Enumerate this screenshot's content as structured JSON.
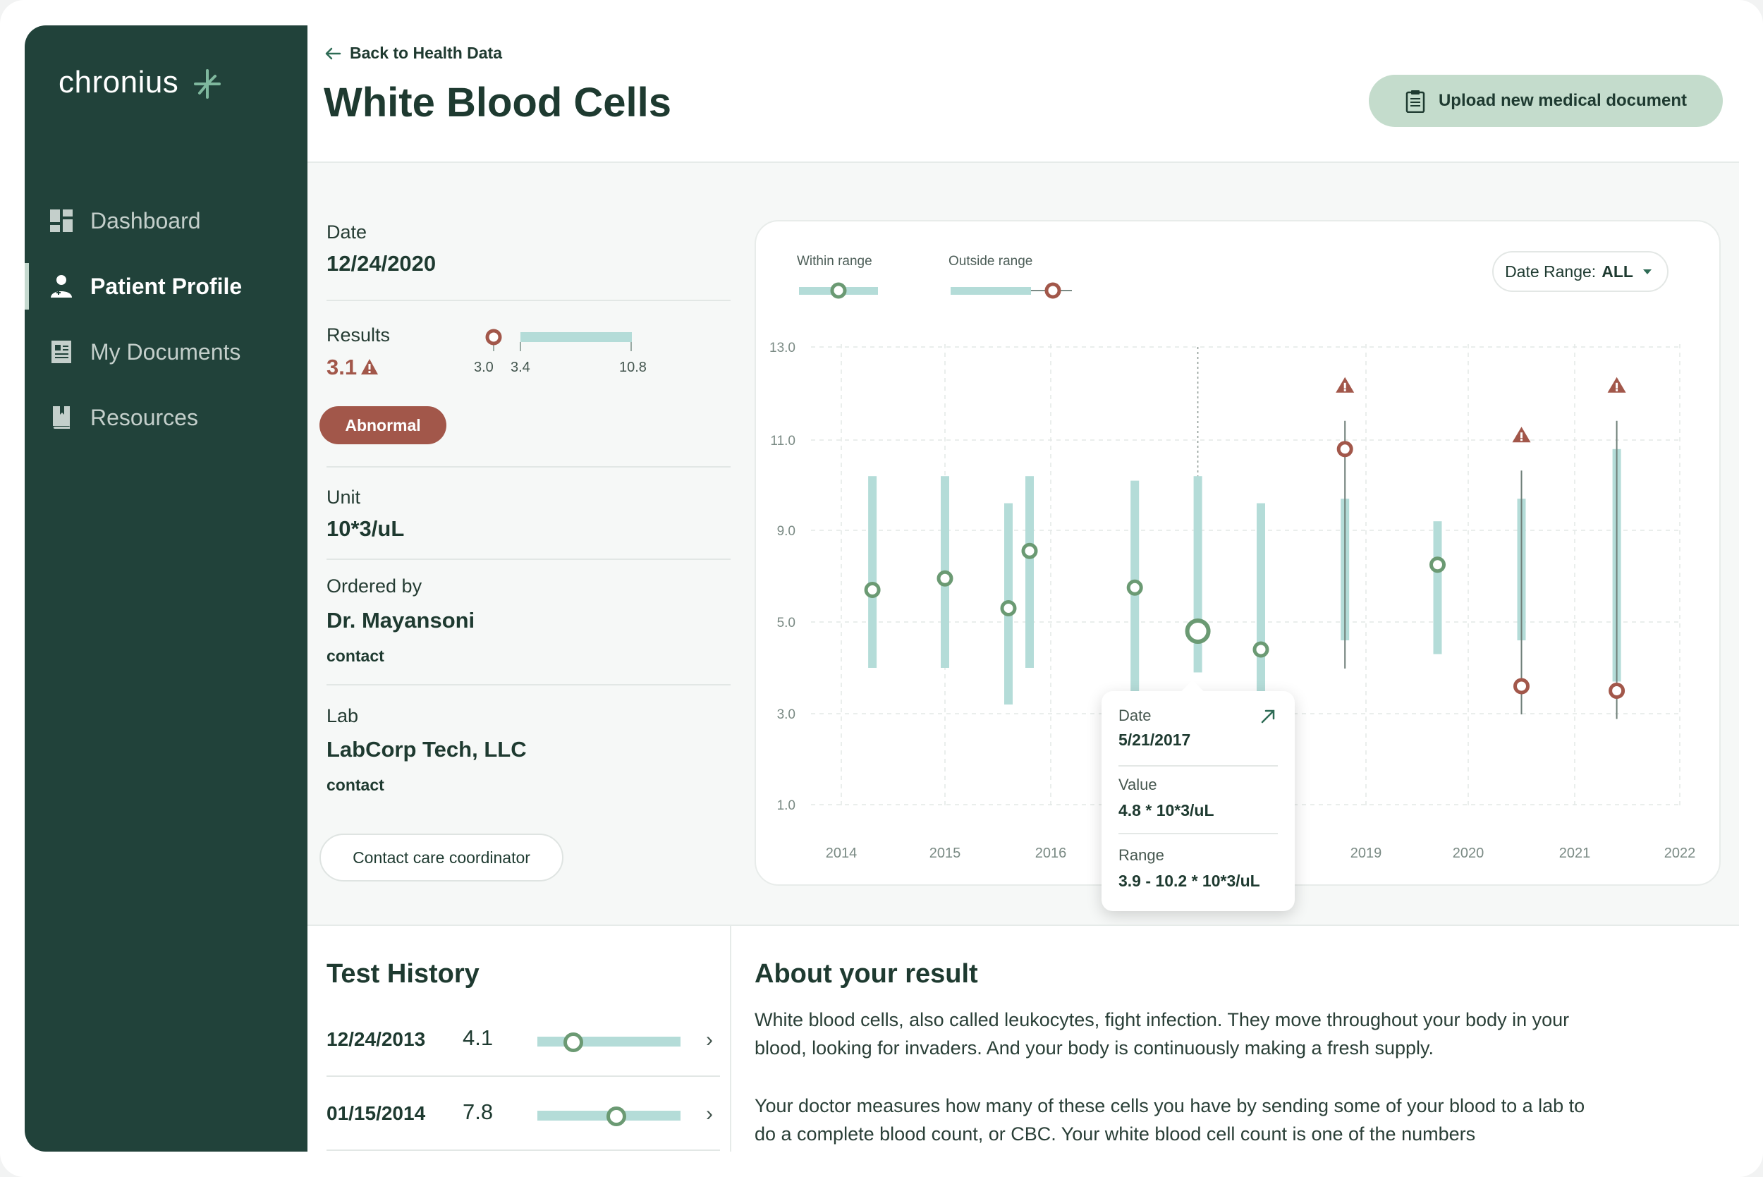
{
  "app": {
    "logo": "chronius",
    "logo_icon": "sparkle-icon"
  },
  "sidebar": {
    "items": [
      {
        "label": "Dashboard",
        "icon": "dashboard-grid-icon",
        "active": false
      },
      {
        "label": "Patient Profile",
        "icon": "patient-profile-icon",
        "active": true
      },
      {
        "label": "My Documents",
        "icon": "documents-icon",
        "active": false
      },
      {
        "label": "Resources",
        "icon": "bookmark-book-icon",
        "active": false
      }
    ]
  },
  "header": {
    "back_label": "Back to Health Data",
    "title": "White Blood Cells",
    "upload_label": "Upload new medical document"
  },
  "details": {
    "date_label": "Date",
    "date_value": "12/24/2020",
    "results_label": "Results",
    "results_value": "3.1",
    "results_scale": {
      "min": "3.0",
      "low": "3.4",
      "high": "10.8",
      "value": 3.1
    },
    "status_badge": "Abnormal",
    "unit_label": "Unit",
    "unit_value": "10*3/uL",
    "ordered_by_label": "Ordered by",
    "ordered_by_value": "Dr. Mayansoni",
    "ordered_by_contact": "contact",
    "lab_label": "Lab",
    "lab_value": "LabCorp Tech, LLC",
    "lab_contact": "contact",
    "coordinator_button": "Contact care coordinator"
  },
  "legend": {
    "within": "Within range",
    "outside": "Outside range"
  },
  "date_range": {
    "label": "Date Range:",
    "value": "ALL"
  },
  "chart_data": {
    "type": "range-dot",
    "y_ticks": [
      "13.0",
      "11.0",
      "9.0",
      "5.0",
      "3.0",
      "1.0"
    ],
    "x_ticks": [
      "2014",
      "2015",
      "2016",
      "2019",
      "2020",
      "2021",
      "2022"
    ],
    "grid": true,
    "colors": {
      "range": "#b4dcd8",
      "within": "#6b9a73",
      "outside": "#a2574a"
    },
    "points": [
      {
        "x": 2014.3,
        "range": [
          4.0,
          10.2
        ],
        "value": 6.4,
        "status": "within"
      },
      {
        "x": 2015.0,
        "range": [
          4.0,
          10.2
        ],
        "value": 6.9,
        "status": "within"
      },
      {
        "x": 2015.6,
        "range": [
          3.2,
          9.6
        ],
        "value": 5.6,
        "status": "within"
      },
      {
        "x": 2015.8,
        "range": [
          4.0,
          10.2
        ],
        "value": 8.1,
        "status": "within"
      },
      {
        "x": 2016.8,
        "range": [
          3.0,
          10.1
        ],
        "value": 6.5,
        "status": "within"
      },
      {
        "x": 2017.4,
        "range": [
          3.9,
          10.2
        ],
        "value": 4.8,
        "status": "within",
        "selected": true
      },
      {
        "x": 2018.0,
        "range": [
          3.1,
          9.6
        ],
        "value": 4.4,
        "status": "within"
      },
      {
        "x": 2018.8,
        "range": [
          4.6,
          9.7
        ],
        "value": 10.8,
        "status": "outside",
        "alert": true
      },
      {
        "x": 2019.7,
        "range": [
          4.3,
          9.2
        ],
        "value": 7.5,
        "status": "within"
      },
      {
        "x": 2020.5,
        "range": [
          4.6,
          9.7
        ],
        "value": 3.6,
        "status": "outside",
        "alert": true
      },
      {
        "x": 2021.4,
        "range": [
          3.7,
          10.8
        ],
        "value": 3.5,
        "status": "outside",
        "alert": true
      }
    ]
  },
  "tooltip": {
    "date_label": "Date",
    "date_value": "5/21/2017",
    "value_label": "Value",
    "value_value": "4.8 * 10*3/uL",
    "range_label": "Range",
    "range_value": "3.9 - 10.2 * 10*3/uL"
  },
  "history": {
    "title": "Test History",
    "rows": [
      {
        "date": "12/24/2013",
        "value": "4.1",
        "position": 0.25
      },
      {
        "date": "01/15/2014",
        "value": "7.8",
        "position": 0.55
      }
    ]
  },
  "about": {
    "title": "About your result",
    "p1": "White blood cells, also called leukocytes, fight infection. They move throughout your body in your blood, looking for invaders. And your body is continuously making a fresh supply.",
    "p2": "Your doctor measures how many of these cells you have by sending some of your blood to a lab to do a complete blood count, or CBC. Your white blood cell count is one of the numbers"
  }
}
